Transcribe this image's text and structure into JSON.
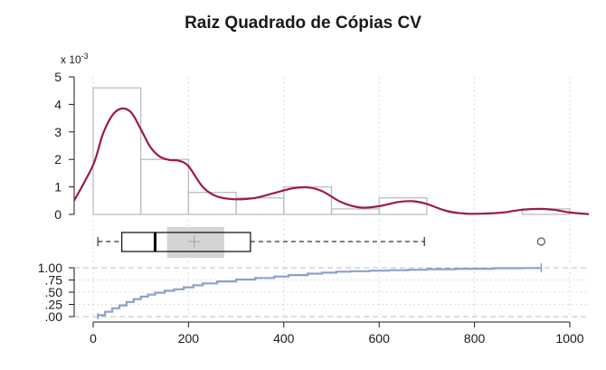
{
  "chart_data": {
    "type": "histogram",
    "title": "Raiz Quadrado de Cópias CV",
    "y_scale_label": "x 10",
    "y_scale_exponent": "-3",
    "x_axis": {
      "range": [
        0,
        1000
      ],
      "ticks": [
        "0",
        "200",
        "400",
        "600",
        "800",
        "1000"
      ]
    },
    "histogram": {
      "ylim": [
        0,
        5
      ],
      "y_ticks": [
        "0",
        "1",
        "2",
        "3",
        "4",
        "5"
      ],
      "bin_edges": [
        0,
        100,
        200,
        300,
        400,
        500,
        600,
        700,
        800,
        900,
        1000
      ],
      "densities": [
        4.6,
        2.0,
        0.8,
        0.6,
        1.0,
        0.2,
        0.6,
        0.0,
        0.0,
        0.2
      ],
      "bar_color": "#bdbdbd"
    },
    "density_curve": {
      "color": "#9b1b47",
      "x": [
        -40,
        0,
        20,
        40,
        60,
        80,
        100,
        120,
        140,
        160,
        180,
        200,
        230,
        260,
        300,
        340,
        380,
        420,
        450,
        480,
        520,
        560,
        600,
        640,
        670,
        700,
        740,
        780,
        820,
        860,
        900,
        940,
        970,
        1000,
        1040
      ],
      "y": [
        0.5,
        1.8,
        2.9,
        3.6,
        3.85,
        3.7,
        3.1,
        2.45,
        2.1,
        1.98,
        1.95,
        1.75,
        1.0,
        0.65,
        0.55,
        0.6,
        0.78,
        0.95,
        0.98,
        0.85,
        0.45,
        0.25,
        0.3,
        0.45,
        0.48,
        0.38,
        0.13,
        0.03,
        0.03,
        0.07,
        0.17,
        0.2,
        0.16,
        0.07,
        0.01
      ]
    },
    "boxplot": {
      "min": 10,
      "q1": 60,
      "median": 130,
      "q3": 330,
      "max": 695,
      "mean": 212,
      "mean_band": [
        155,
        275
      ],
      "outliers": [
        940
      ]
    },
    "ecdf": {
      "color": "#8da0cb",
      "ylim": [
        0,
        1
      ],
      "y_ticks": [
        "1.00",
        ".75",
        ".50",
        ".25",
        ".00"
      ],
      "x": [
        10,
        25,
        40,
        55,
        70,
        85,
        100,
        115,
        130,
        150,
        170,
        190,
        210,
        230,
        260,
        300,
        340,
        380,
        410,
        450,
        480,
        510,
        540,
        580,
        620,
        660,
        700,
        760,
        840,
        900,
        940
      ],
      "y": [
        0.03,
        0.1,
        0.17,
        0.23,
        0.3,
        0.36,
        0.41,
        0.45,
        0.49,
        0.53,
        0.56,
        0.6,
        0.64,
        0.68,
        0.72,
        0.76,
        0.79,
        0.82,
        0.85,
        0.88,
        0.9,
        0.92,
        0.93,
        0.94,
        0.95,
        0.96,
        0.97,
        0.98,
        0.99,
        0.995,
        1.0
      ]
    }
  }
}
